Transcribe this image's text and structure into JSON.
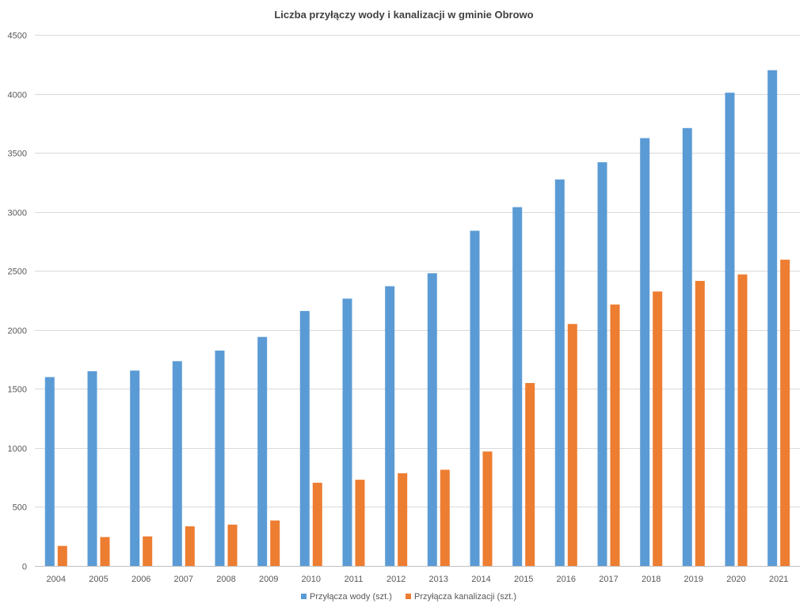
{
  "chart_data": {
    "type": "bar",
    "title": "Liczba przyłączy wody i kanalizacji w gminie Obrowo",
    "xlabel": "",
    "ylabel": "",
    "ylim": [
      0,
      4500
    ],
    "yticks": [
      0,
      500,
      1000,
      1500,
      2000,
      2500,
      3000,
      3500,
      4000,
      4500
    ],
    "grid": true,
    "legend_position": "bottom",
    "categories": [
      "2004",
      "2005",
      "2006",
      "2007",
      "2008",
      "2009",
      "2010",
      "2011",
      "2012",
      "2013",
      "2014",
      "2015",
      "2016",
      "2017",
      "2018",
      "2019",
      "2020",
      "2021"
    ],
    "series": [
      {
        "name": "Przyłącza wody (szt.)",
        "color": "#5B9BD5",
        "values": [
          1600,
          1650,
          1655,
          1735,
          1825,
          1940,
          2160,
          2265,
          2370,
          2480,
          2840,
          3040,
          3275,
          3420,
          3625,
          3710,
          4010,
          4200
        ]
      },
      {
        "name": "Przyłącza kanalizacji (szt.)",
        "color": "#ED7D31",
        "values": [
          170,
          245,
          250,
          335,
          350,
          385,
          705,
          730,
          785,
          815,
          970,
          1550,
          2050,
          2215,
          2325,
          2415,
          2470,
          2595
        ]
      }
    ]
  }
}
